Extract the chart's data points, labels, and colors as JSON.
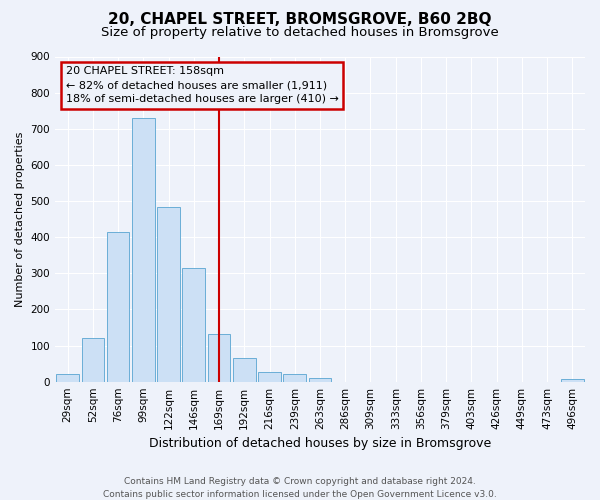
{
  "title": "20, CHAPEL STREET, BROMSGROVE, B60 2BQ",
  "subtitle": "Size of property relative to detached houses in Bromsgrove",
  "xlabel": "Distribution of detached houses by size in Bromsgrove",
  "ylabel": "Number of detached properties",
  "bar_labels": [
    "29sqm",
    "52sqm",
    "76sqm",
    "99sqm",
    "122sqm",
    "146sqm",
    "169sqm",
    "192sqm",
    "216sqm",
    "239sqm",
    "263sqm",
    "286sqm",
    "309sqm",
    "333sqm",
    "356sqm",
    "379sqm",
    "403sqm",
    "426sqm",
    "449sqm",
    "473sqm",
    "496sqm"
  ],
  "bar_values": [
    20,
    120,
    415,
    730,
    483,
    314,
    133,
    65,
    28,
    20,
    10,
    0,
    0,
    0,
    0,
    0,
    0,
    0,
    0,
    0,
    8
  ],
  "bar_color": "#cce0f5",
  "bar_edge_color": "#6aaed6",
  "vline_color": "#cc0000",
  "ylim": [
    0,
    900
  ],
  "yticks": [
    0,
    100,
    200,
    300,
    400,
    500,
    600,
    700,
    800,
    900
  ],
  "annotation_title": "20 CHAPEL STREET: 158sqm",
  "annotation_line1": "← 82% of detached houses are smaller (1,911)",
  "annotation_line2": "18% of semi-detached houses are larger (410) →",
  "annotation_box_color": "#cc0000",
  "footer_line1": "Contains HM Land Registry data © Crown copyright and database right 2024.",
  "footer_line2": "Contains public sector information licensed under the Open Government Licence v3.0.",
  "bg_color": "#eef2fa",
  "grid_color": "#ffffff",
  "title_fontsize": 11,
  "subtitle_fontsize": 9.5,
  "ylabel_fontsize": 8,
  "xlabel_fontsize": 9,
  "tick_fontsize": 7.5,
  "footer_fontsize": 6.5,
  "annot_fontsize": 8
}
